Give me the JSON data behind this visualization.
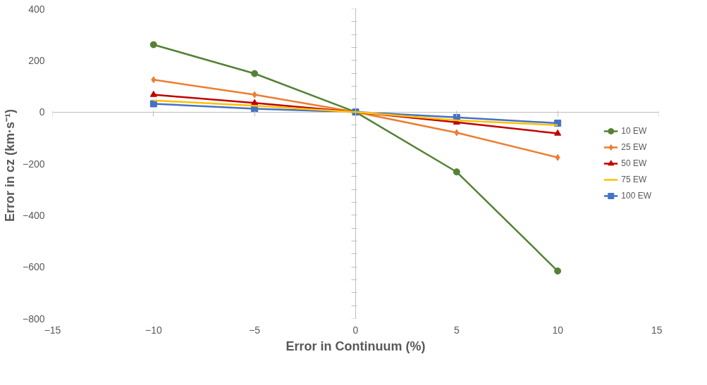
{
  "chart_data": {
    "type": "line",
    "xlabel": "Error in Continuum (%)",
    "ylabel": "Error in cz  (km·s⁻¹)",
    "x": [
      -10,
      -5,
      0,
      5,
      10
    ],
    "series": [
      {
        "name": "10 EW",
        "color": "#548235",
        "marker": "circle",
        "values": [
          261,
          149,
          0,
          -232,
          -616
        ]
      },
      {
        "name": "25 EW",
        "color": "#ed7d31",
        "marker": "diamond",
        "values": [
          125,
          67,
          0,
          -80,
          -176
        ]
      },
      {
        "name": "50 EW",
        "color": "#c00000",
        "marker": "triangle",
        "values": [
          67,
          35,
          0,
          -40,
          -83
        ]
      },
      {
        "name": "75 EW",
        "color": "#ffc000",
        "marker": "none",
        "values": [
          45,
          24,
          0,
          -32,
          -51
        ]
      },
      {
        "name": "100 EW",
        "color": "#4472c4",
        "marker": "square",
        "values": [
          32,
          13,
          0,
          -21,
          -43
        ]
      }
    ],
    "xlim": [
      -15,
      15
    ],
    "xticks": [
      -15,
      -10,
      -5,
      0,
      5,
      10,
      15
    ],
    "ylim": [
      -800,
      400
    ],
    "yticks": [
      -800,
      -600,
      -400,
      -200,
      0,
      200,
      400
    ],
    "legend": "right",
    "line_style": "solid"
  }
}
